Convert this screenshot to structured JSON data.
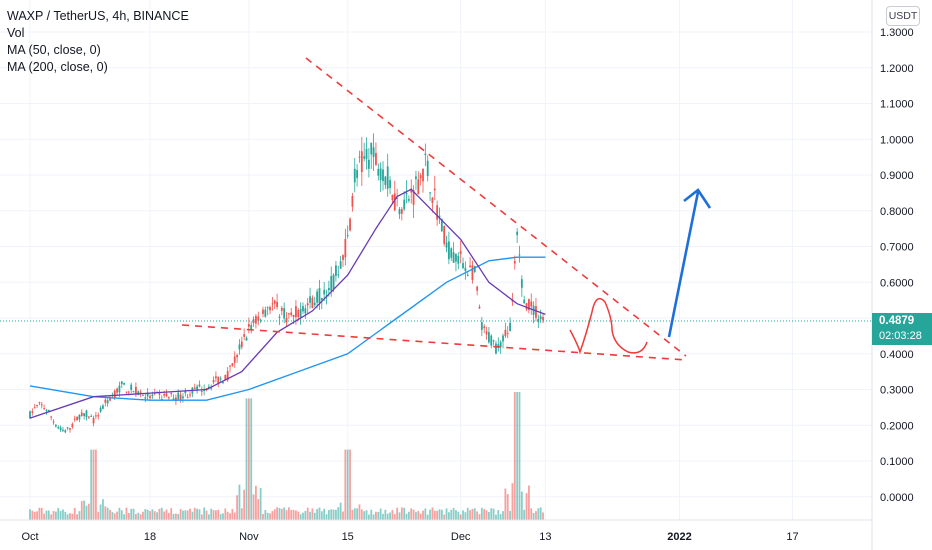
{
  "legend": {
    "symbol": "WAXP / TetherUS, 4h, BINANCE",
    "vol": "Vol",
    "ma50": "MA (50, close, 0)",
    "ma200": "MA (200, close, 0)"
  },
  "price_axis": {
    "currency": "USDT",
    "last_price": "0.4879",
    "countdown": "02:03:28"
  },
  "colors": {
    "up": "#26a69a",
    "down": "#ef5350",
    "ma50": "#673ab7",
    "ma200": "#2196f3",
    "drawing_red": "#ef3b3b",
    "arrow_blue": "#1e6fd9",
    "last_price_line": "#26a69a"
  },
  "chart_data": {
    "type": "candlestick",
    "title": "WAXP / TetherUS, 4h, BINANCE",
    "ylim": [
      -0.05,
      1.33
    ],
    "y_ticks": [
      "1.3000",
      "1.2000",
      "1.1000",
      "1.0000",
      "0.9000",
      "0.8000",
      "0.7000",
      "0.6000",
      "0.5000",
      "0.4000",
      "0.3000",
      "0.2000",
      "0.1000",
      "0.0000"
    ],
    "x_ticks": [
      "Oct",
      "18",
      "Nov",
      "15",
      "Dec",
      "13",
      "2022",
      "17"
    ],
    "price_path": [
      {
        "x": "Oct 10",
        "y": 0.21
      },
      {
        "x": "Oct 12",
        "y": 0.27
      },
      {
        "x": "Oct 14",
        "y": 0.31
      },
      {
        "x": "Oct 18",
        "y": 0.28
      },
      {
        "x": "Oct 22",
        "y": 0.28
      },
      {
        "x": "Oct 26",
        "y": 0.31
      },
      {
        "x": "Oct 29",
        "y": 0.34
      },
      {
        "x": "Nov 1",
        "y": 0.47
      },
      {
        "x": "Nov 4",
        "y": 0.54
      },
      {
        "x": "Nov 7",
        "y": 0.5
      },
      {
        "x": "Nov 10",
        "y": 0.55
      },
      {
        "x": "Nov 13",
        "y": 0.6
      },
      {
        "x": "Nov 15",
        "y": 0.72
      },
      {
        "x": "Nov 16",
        "y": 0.9
      },
      {
        "x": "Nov 18",
        "y": 0.96
      },
      {
        "x": "Nov 20",
        "y": 0.92
      },
      {
        "x": "Nov 22",
        "y": 0.82
      },
      {
        "x": "Nov 24",
        "y": 0.84
      },
      {
        "x": "Nov 26",
        "y": 0.93
      },
      {
        "x": "Nov 27",
        "y": 0.86
      },
      {
        "x": "Nov 29",
        "y": 0.7
      },
      {
        "x": "Dec 1",
        "y": 0.66
      },
      {
        "x": "Dec 3",
        "y": 0.62
      },
      {
        "x": "Dec 4",
        "y": 0.47
      },
      {
        "x": "Dec 6",
        "y": 0.42
      },
      {
        "x": "Dec 8",
        "y": 0.47
      },
      {
        "x": "Dec 9",
        "y": 0.72
      },
      {
        "x": "Dec 10",
        "y": 0.55
      },
      {
        "x": "Dec 12",
        "y": 0.51
      },
      {
        "x": "Dec 13",
        "y": 0.4879
      }
    ],
    "ma50_path": [
      {
        "x": "Oct 1",
        "y": 0.22
      },
      {
        "x": "Oct 10",
        "y": 0.28
      },
      {
        "x": "Oct 18",
        "y": 0.29
      },
      {
        "x": "Oct 26",
        "y": 0.3
      },
      {
        "x": "Oct 31",
        "y": 0.35
      },
      {
        "x": "Nov 5",
        "y": 0.46
      },
      {
        "x": "Nov 10",
        "y": 0.52
      },
      {
        "x": "Nov 15",
        "y": 0.62
      },
      {
        "x": "Nov 19",
        "y": 0.75
      },
      {
        "x": "Nov 22",
        "y": 0.84
      },
      {
        "x": "Nov 24",
        "y": 0.86
      },
      {
        "x": "Nov 27",
        "y": 0.8
      },
      {
        "x": "Dec 1",
        "y": 0.72
      },
      {
        "x": "Dec 5",
        "y": 0.6
      },
      {
        "x": "Dec 9",
        "y": 0.54
      },
      {
        "x": "Dec 13",
        "y": 0.51
      }
    ],
    "ma200_path": [
      {
        "x": "Oct 1",
        "y": 0.31
      },
      {
        "x": "Oct 10",
        "y": 0.28
      },
      {
        "x": "Oct 18",
        "y": 0.27
      },
      {
        "x": "Oct 26",
        "y": 0.27
      },
      {
        "x": "Nov 1",
        "y": 0.3
      },
      {
        "x": "Nov 8",
        "y": 0.35
      },
      {
        "x": "Nov 15",
        "y": 0.4
      },
      {
        "x": "Nov 22",
        "y": 0.5
      },
      {
        "x": "Nov 29",
        "y": 0.6
      },
      {
        "x": "Dec 5",
        "y": 0.66
      },
      {
        "x": "Dec 9",
        "y": 0.67
      },
      {
        "x": "Dec 13",
        "y": 0.67
      }
    ],
    "volume_spikes": [
      {
        "x": "Oct 10",
        "v": 0.55
      },
      {
        "x": "Nov 1",
        "v": 0.95
      },
      {
        "x": "Nov 15",
        "v": 0.55
      },
      {
        "x": "Dec 9",
        "v": 1.0
      }
    ]
  }
}
